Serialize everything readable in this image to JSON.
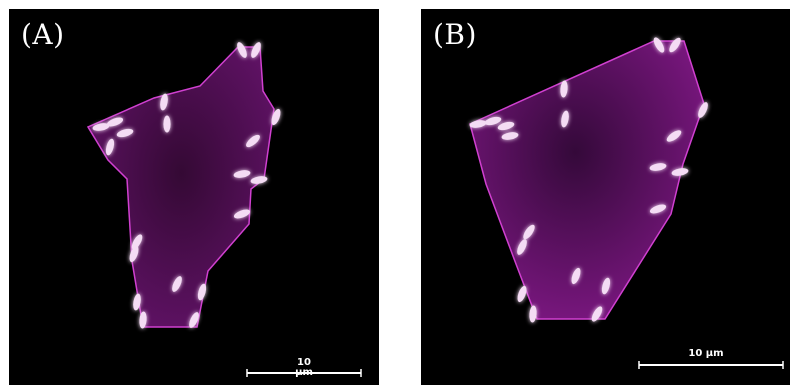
{
  "panels": [
    {
      "label": "(A)",
      "scalebar_label": "10 μm"
    },
    {
      "label": "(B)",
      "scalebar_label": "10 μm"
    }
  ],
  "colors": {
    "background": "#000000",
    "region_fill": "#5a0a5a",
    "region_outline": "#d040d0",
    "cell": "#f4dcf4",
    "cell_glow": "#ff66ff",
    "scalebar": "#ffffff"
  }
}
